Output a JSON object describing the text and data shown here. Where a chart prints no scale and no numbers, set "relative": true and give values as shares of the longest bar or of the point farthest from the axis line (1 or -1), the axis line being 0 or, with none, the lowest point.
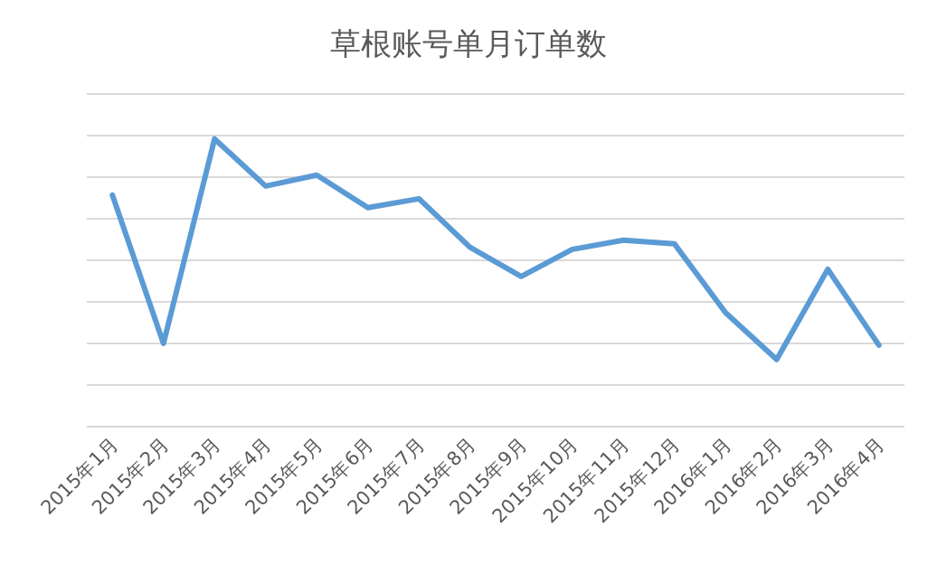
{
  "chart_data": {
    "type": "line",
    "title": "草根账号单月订单数",
    "relative": true,
    "grid": "y",
    "color": "#5b9bd5",
    "categories": [
      "2015年1月",
      "2015年2月",
      "2015年3月",
      "2015年4月",
      "2015年5月",
      "2015年6月",
      "2015年7月",
      "2015年8月",
      "2015年9月",
      "2015年10月",
      "2015年11月",
      "2015年12月",
      "2016年1月",
      "2016年2月",
      "2016年3月",
      "2016年4月"
    ],
    "values": [
      0.805,
      0.289,
      1,
      0.836,
      0.874,
      0.761,
      0.792,
      0.623,
      0.522,
      0.616,
      0.648,
      0.635,
      0.396,
      0.233,
      0.547,
      0.283
    ]
  }
}
